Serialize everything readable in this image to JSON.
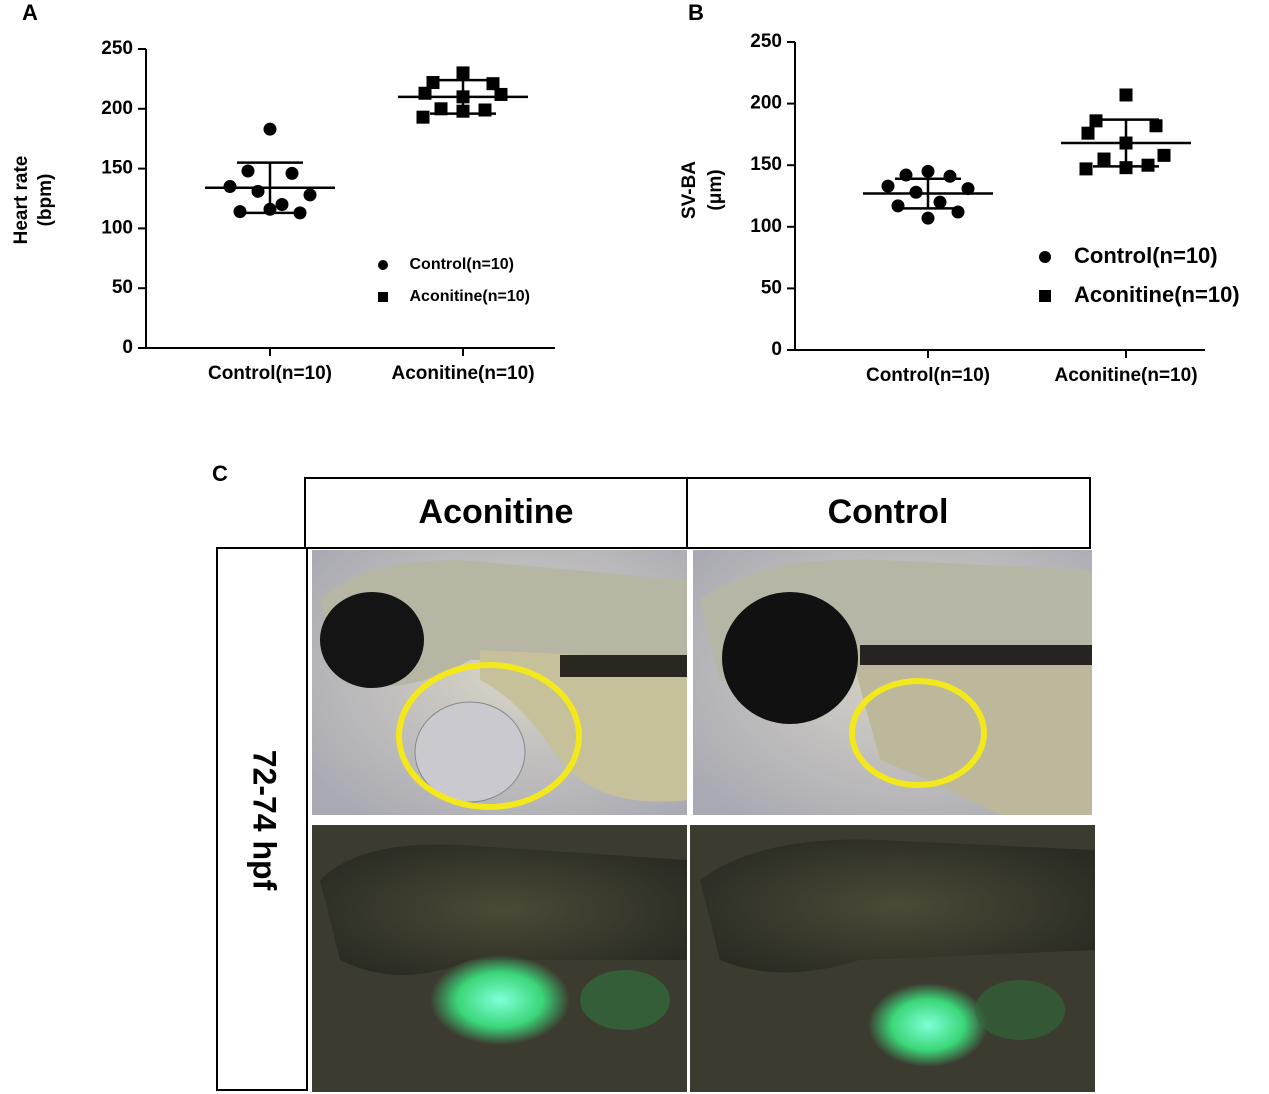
{
  "chart_data": [
    {
      "type": "scatter",
      "panel": "A",
      "ylabel": [
        "Heart rate",
        "(bpm)"
      ],
      "categories": [
        "Control(n=10)",
        "Aconitine(n=10)"
      ],
      "series": [
        {
          "name": "Control(n=10)",
          "marker": "circle",
          "color": "#000000",
          "category": 0,
          "values": [
            183,
            148,
            146,
            135,
            128,
            131,
            120,
            114,
            113,
            116
          ],
          "mean": 134,
          "sd": 21
        },
        {
          "name": "Aconitine(n=10)",
          "marker": "square",
          "color": "#000000",
          "category": 1,
          "values": [
            230,
            222,
            221,
            213,
            210,
            212,
            200,
            199,
            198,
            193
          ],
          "mean": 210,
          "sd": 14
        }
      ],
      "ylim": [
        0,
        250
      ],
      "yticks": [
        0,
        50,
        100,
        150,
        200,
        250
      ]
    },
    {
      "type": "scatter",
      "panel": "B",
      "ylabel": [
        "SV-BA",
        "(μm)"
      ],
      "categories": [
        "Control(n=10)",
        "Aconitine(n=10)"
      ],
      "series": [
        {
          "name": "Control(n=10)",
          "marker": "circle",
          "color": "#000000",
          "category": 0,
          "values": [
            145,
            142,
            141,
            133,
            131,
            128,
            120,
            117,
            112,
            107
          ],
          "mean": 127,
          "sd": 12
        },
        {
          "name": "Aconitine(n=10)",
          "marker": "square",
          "color": "#000000",
          "category": 1,
          "values": [
            207,
            186,
            182,
            176,
            168,
            158,
            155,
            150,
            148,
            147
          ],
          "mean": 168,
          "sd": 19
        }
      ],
      "ylim": [
        0,
        250
      ],
      "yticks": [
        0,
        50,
        100,
        150,
        200,
        250
      ]
    }
  ],
  "figure_c": {
    "label": "C",
    "columns": [
      "Aconitine",
      "Control"
    ],
    "row_label": "72-74 hpf"
  }
}
